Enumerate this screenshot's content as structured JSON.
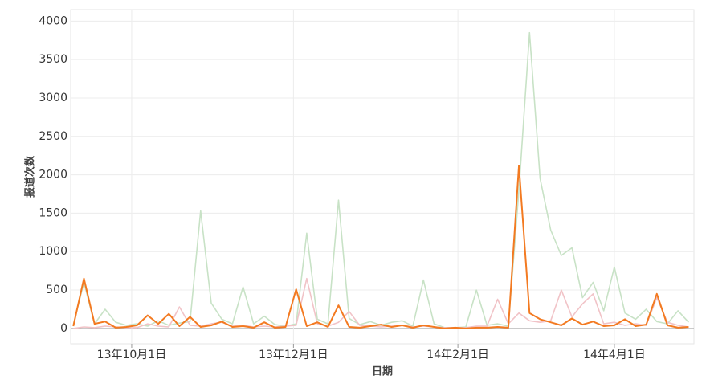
{
  "chart_data": {
    "type": "line",
    "x_label": "日期",
    "y_label": "报道次数",
    "x": [
      "2013-09-09",
      "2013-09-13",
      "2013-09-17",
      "2013-09-21",
      "2013-09-25",
      "2013-09-29",
      "2013-10-03",
      "2013-10-07",
      "2013-10-11",
      "2013-10-15",
      "2013-10-19",
      "2013-10-23",
      "2013-10-27",
      "2013-10-31",
      "2013-11-04",
      "2013-11-08",
      "2013-11-12",
      "2013-11-16",
      "2013-11-20",
      "2013-11-24",
      "2013-11-28",
      "2013-12-02",
      "2013-12-06",
      "2013-12-10",
      "2013-12-14",
      "2013-12-18",
      "2013-12-22",
      "2013-12-26",
      "2013-12-30",
      "2014-01-03",
      "2014-01-07",
      "2014-01-11",
      "2014-01-15",
      "2014-01-19",
      "2014-01-23",
      "2014-01-27",
      "2014-01-31",
      "2014-02-04",
      "2014-02-08",
      "2014-02-12",
      "2014-02-16",
      "2014-02-20",
      "2014-02-24",
      "2014-02-28",
      "2014-03-04",
      "2014-03-08",
      "2014-03-12",
      "2014-03-16",
      "2014-03-20",
      "2014-03-24",
      "2014-03-28",
      "2014-04-01",
      "2014-04-05",
      "2014-04-09",
      "2014-04-13",
      "2014-04-17",
      "2014-04-21",
      "2014-04-25",
      "2014-04-29"
    ],
    "series": [
      {
        "color": "#c8e2c6",
        "values": [
          50,
          600,
          60,
          250,
          80,
          40,
          60,
          30,
          100,
          40,
          70,
          90,
          1530,
          330,
          120,
          60,
          540,
          60,
          160,
          50,
          30,
          60,
          1240,
          120,
          60,
          1670,
          130,
          50,
          90,
          40,
          80,
          100,
          30,
          630,
          60,
          10,
          10,
          20,
          500,
          40,
          60,
          30,
          1800,
          3850,
          1950,
          1280,
          950,
          1050,
          400,
          600,
          230,
          800,
          200,
          120,
          250,
          90,
          60,
          230,
          80
        ]
      },
      {
        "color": "#f1c3c7",
        "values": [
          0,
          20,
          10,
          30,
          20,
          10,
          10,
          60,
          30,
          20,
          280,
          40,
          30,
          60,
          80,
          30,
          40,
          20,
          30,
          20,
          30,
          40,
          650,
          60,
          30,
          80,
          220,
          40,
          30,
          20,
          30,
          40,
          20,
          30,
          20,
          10,
          10,
          10,
          30,
          30,
          380,
          60,
          200,
          100,
          80,
          100,
          500,
          150,
          320,
          450,
          60,
          80,
          40,
          60,
          40,
          400,
          80,
          40,
          20
        ]
      },
      {
        "color": "#f37a21",
        "values": [
          30,
          650,
          60,
          90,
          10,
          20,
          40,
          170,
          60,
          190,
          30,
          150,
          20,
          40,
          90,
          20,
          30,
          10,
          80,
          10,
          20,
          510,
          30,
          80,
          20,
          300,
          20,
          10,
          30,
          50,
          20,
          40,
          10,
          40,
          20,
          0,
          10,
          0,
          10,
          10,
          20,
          10,
          2120,
          200,
          120,
          80,
          40,
          130,
          50,
          90,
          30,
          40,
          120,
          30,
          50,
          450,
          40,
          10,
          20
        ]
      }
    ],
    "xlim": [
      "2013-09-08",
      "2014-05-01"
    ],
    "xticks": [
      {
        "value": "2013-10-01",
        "label": "13年10月1日"
      },
      {
        "value": "2013-12-01",
        "label": "13年12月1日"
      },
      {
        "value": "2014-02-01",
        "label": "14年2月1日"
      },
      {
        "value": "2014-04-01",
        "label": "14年4月1日"
      }
    ],
    "ylim": [
      -200,
      4150
    ],
    "yticks": [
      0,
      500,
      1000,
      1500,
      2000,
      2500,
      3000,
      3500,
      4000
    ],
    "grid": true
  }
}
